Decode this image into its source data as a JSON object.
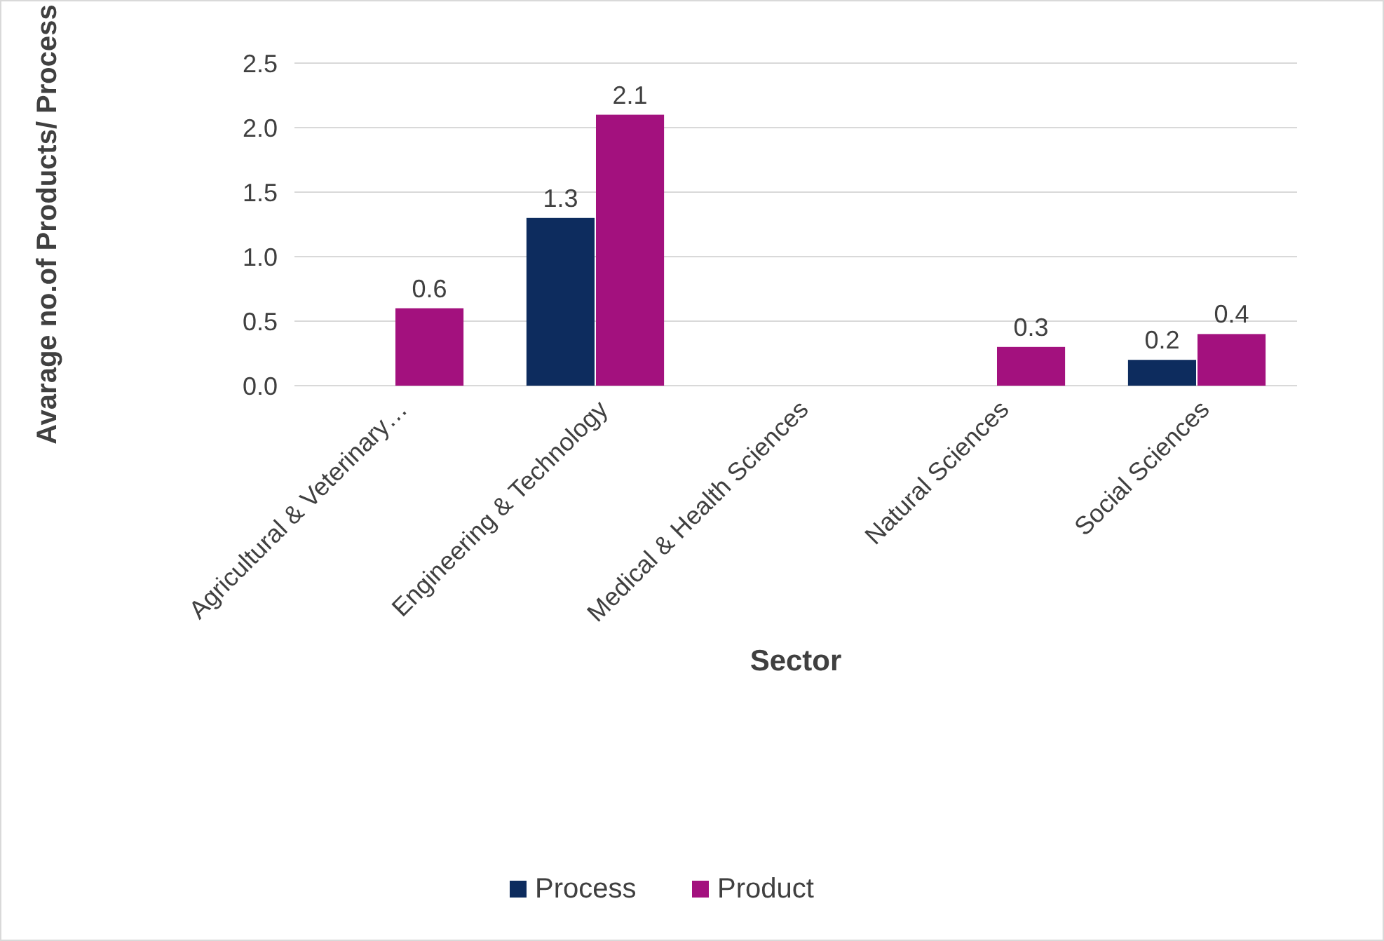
{
  "chart_data": {
    "type": "bar",
    "xlabel": "Sector",
    "ylabel": "Avarage no.of Products/ Process",
    "categories": [
      "Agricultural & Veterinary…",
      "Engineering & Technology",
      "Medical & Health Sciences",
      "Natural Sciences",
      "Social Sciences"
    ],
    "series": [
      {
        "name": "Process",
        "color": "#0d2c5e",
        "values": [
          null,
          1.3,
          null,
          null,
          0.2
        ]
      },
      {
        "name": "Product",
        "color": "#a3117e",
        "values": [
          0.6,
          2.1,
          null,
          0.3,
          0.4
        ]
      }
    ],
    "ylim": [
      0,
      2.5
    ],
    "yticks": [
      {
        "value": 0,
        "label": "0.0"
      },
      {
        "value": 0.5,
        "label": "0.5"
      },
      {
        "value": 1,
        "label": "1.0"
      },
      {
        "value": 1.5,
        "label": "1.5"
      },
      {
        "value": 2,
        "label": "2.0"
      },
      {
        "value": 2.5,
        "label": "2.5"
      }
    ],
    "grid": true,
    "data_labels": true,
    "legend": "bottom"
  }
}
